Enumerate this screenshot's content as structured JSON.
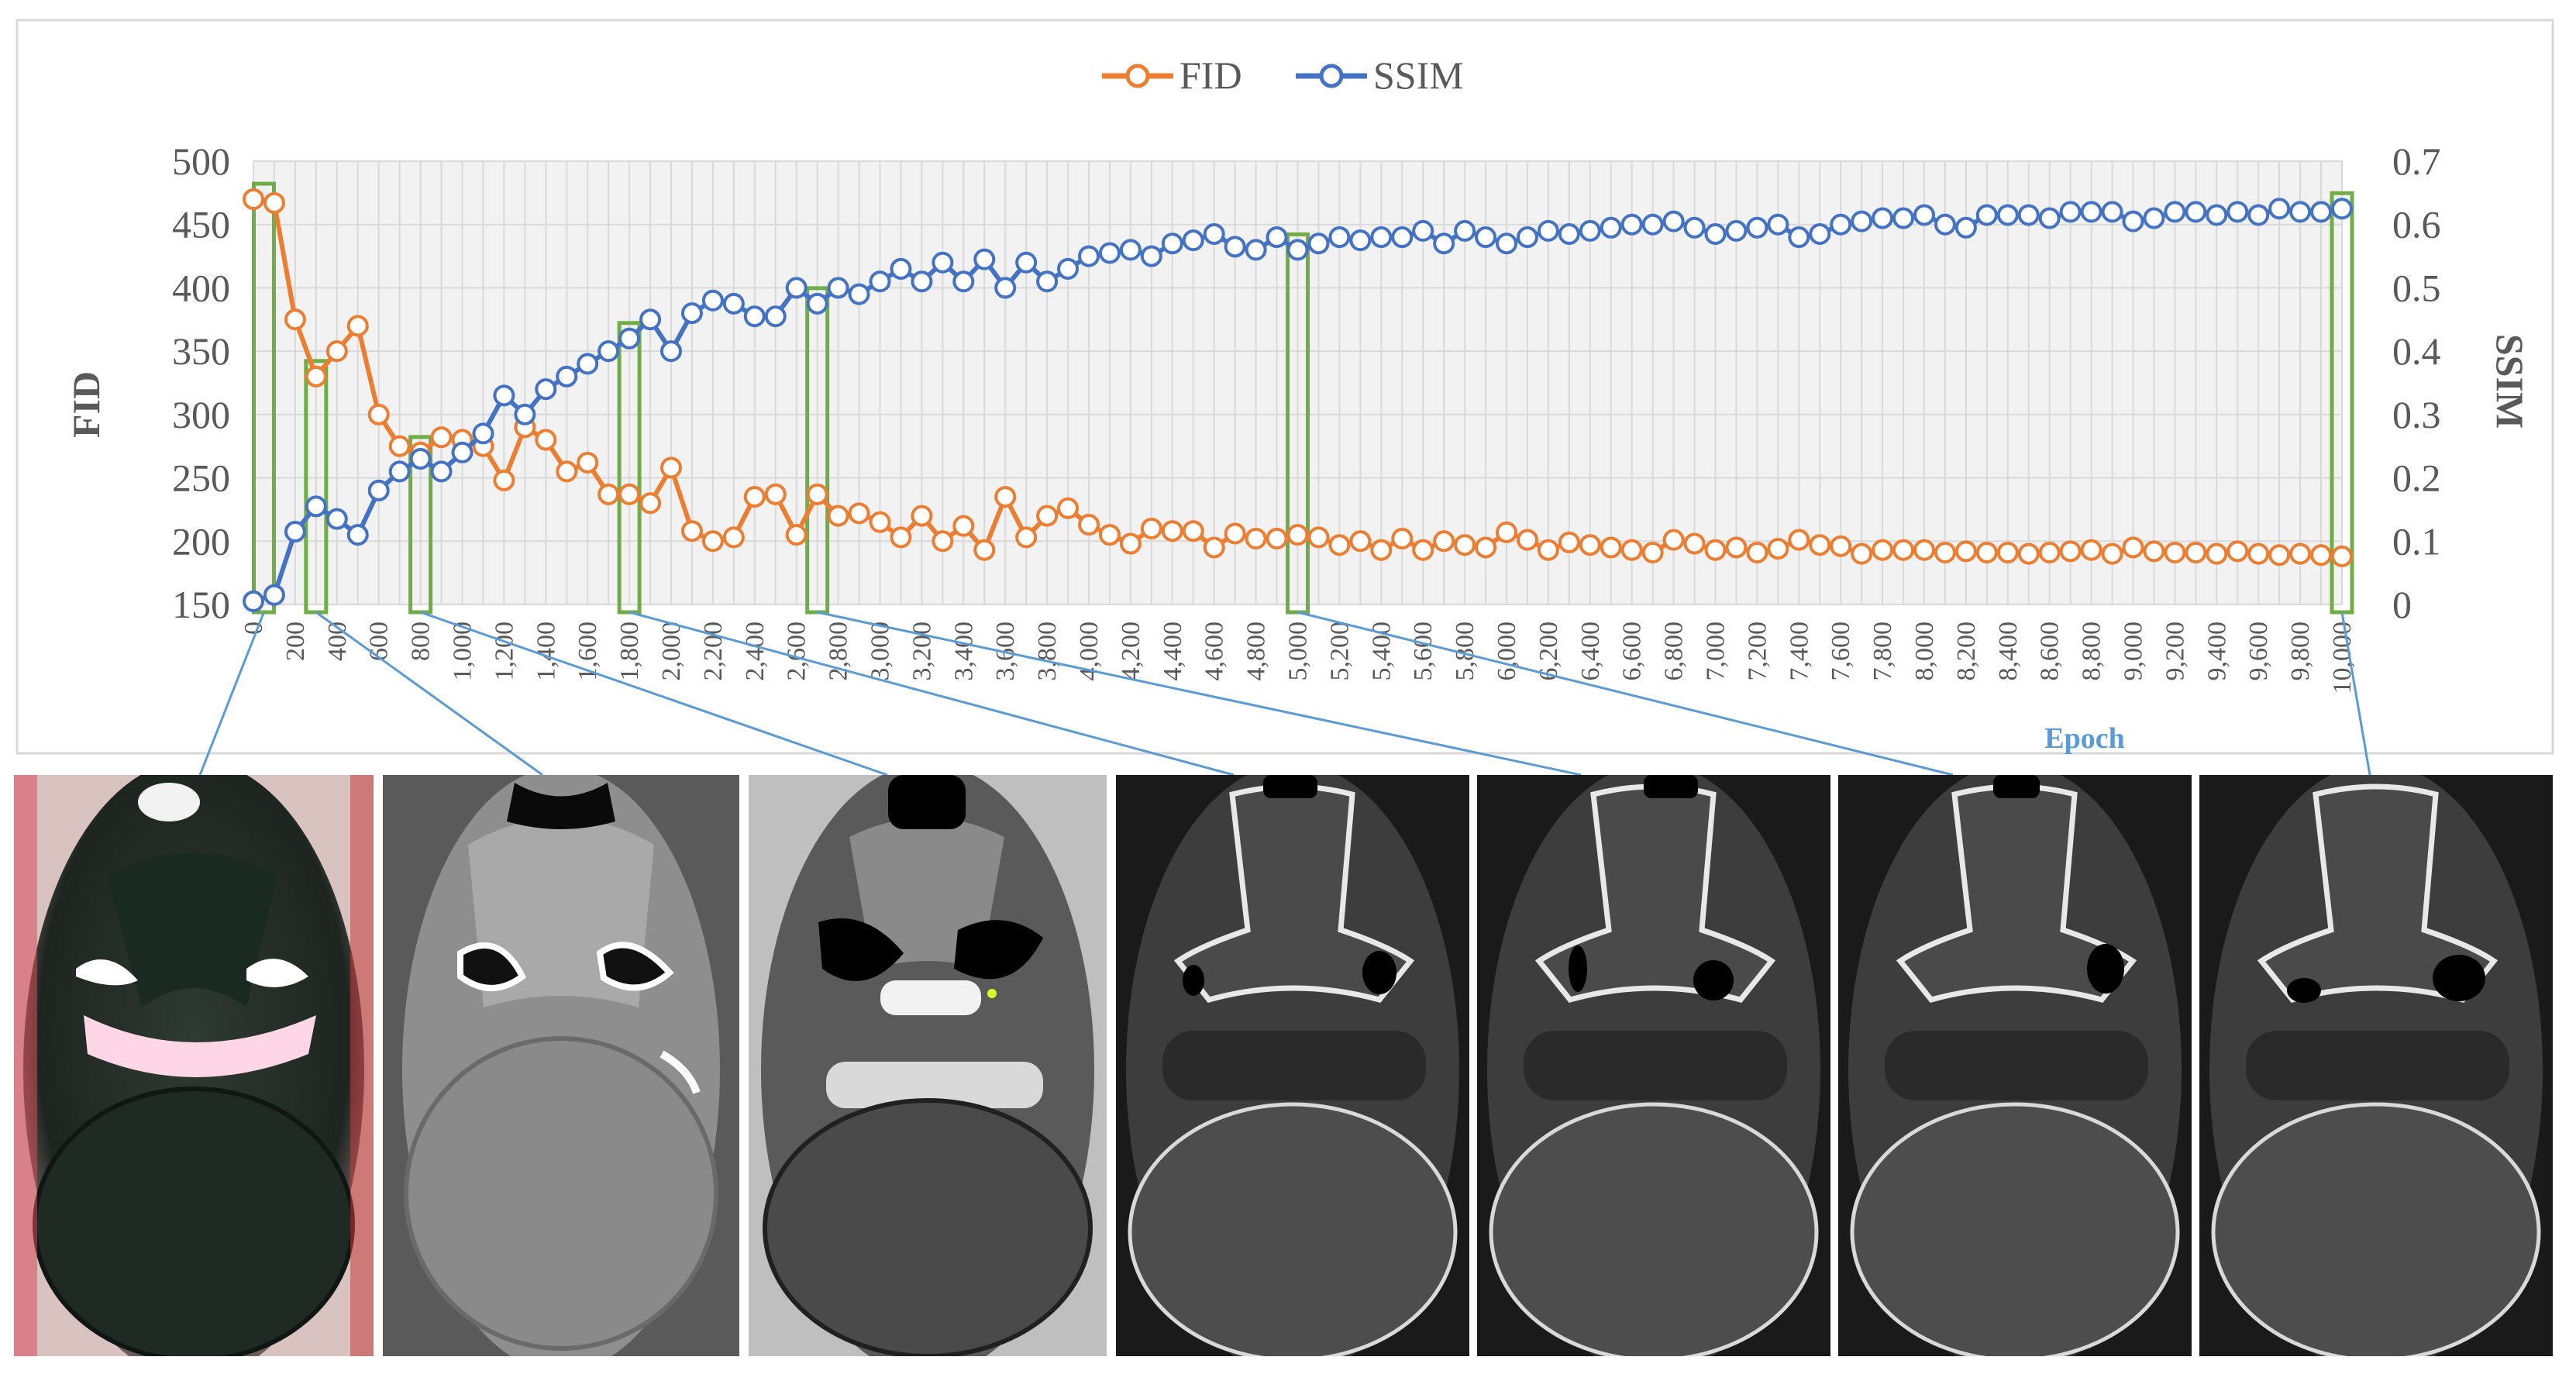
{
  "chart_data": {
    "type": "line",
    "xlabel": "Epoch",
    "y1label": "FID",
    "y2label": "SSIM",
    "y1lim": [
      150,
      500
    ],
    "y2lim": [
      0,
      0.7
    ],
    "y1ticks": [
      "150",
      "200",
      "250",
      "300",
      "350",
      "400",
      "450",
      "500"
    ],
    "y2ticks": [
      "0",
      "0.1",
      "0.2",
      "0.3",
      "0.4",
      "0.5",
      "0.6",
      "0.7"
    ],
    "xticks": [
      "0",
      "200",
      "400",
      "600",
      "800",
      "1,000",
      "1,200",
      "1,400",
      "1,600",
      "1,800",
      "2,000",
      "2,200",
      "2,400",
      "2,600",
      "2,800",
      "3,000",
      "3,200",
      "3,400",
      "3,600",
      "3,800",
      "4,000",
      "4,200",
      "4,400",
      "4,600",
      "4,800",
      "5,000",
      "5,200",
      "5,400",
      "5,600",
      "5,800",
      "6,000",
      "6,200",
      "6,400",
      "6,600",
      "6,800",
      "7,000",
      "7,200",
      "7,400",
      "7,600",
      "7,800",
      "8,000",
      "8,200",
      "8,400",
      "8,600",
      "8,800",
      "9,000",
      "9,200",
      "9,400",
      "9,600",
      "9,800",
      "10,000"
    ],
    "x": [
      0,
      100,
      200,
      300,
      400,
      500,
      600,
      700,
      800,
      900,
      1000,
      1100,
      1200,
      1300,
      1400,
      1500,
      1600,
      1700,
      1800,
      1900,
      2000,
      2100,
      2200,
      2300,
      2400,
      2500,
      2600,
      2700,
      2800,
      2900,
      3000,
      3100,
      3200,
      3300,
      3400,
      3500,
      3600,
      3700,
      3800,
      3900,
      4000,
      4100,
      4200,
      4300,
      4400,
      4500,
      4600,
      4700,
      4800,
      4900,
      5000,
      5100,
      5200,
      5300,
      5400,
      5500,
      5600,
      5700,
      5800,
      5900,
      6000,
      6100,
      6200,
      6300,
      6400,
      6500,
      6600,
      6700,
      6800,
      6900,
      7000,
      7100,
      7200,
      7300,
      7400,
      7500,
      7600,
      7700,
      7800,
      7900,
      8000,
      8100,
      8200,
      8300,
      8400,
      8500,
      8600,
      8700,
      8800,
      8900,
      9000,
      9100,
      9200,
      9300,
      9400,
      9500,
      9600,
      9700,
      9800,
      9900,
      10000
    ],
    "series": [
      {
        "name": "FID",
        "color": "#ED7D31",
        "axis": "left",
        "values": [
          470,
          467,
          375,
          330,
          350,
          370,
          300,
          275,
          270,
          282,
          280,
          275,
          248,
          290,
          280,
          255,
          262,
          237,
          237,
          230,
          258,
          208,
          200,
          203,
          235,
          237,
          205,
          237,
          220,
          222,
          215,
          203,
          220,
          200,
          212,
          193,
          235,
          203,
          220,
          226,
          213,
          205,
          198,
          210,
          208,
          208,
          195,
          206,
          202,
          202,
          205,
          203,
          197,
          200,
          193,
          202,
          193,
          200,
          197,
          195,
          207,
          201,
          193,
          199,
          197,
          195,
          193,
          191,
          201,
          198,
          193,
          195,
          191,
          194,
          201,
          197,
          196,
          190,
          193,
          193,
          193,
          191,
          192,
          191,
          191,
          190,
          191,
          192,
          193,
          190,
          195,
          192,
          191,
          191,
          190,
          192,
          190,
          189,
          190,
          189,
          188
        ]
      },
      {
        "name": "SSIM",
        "color": "#4472C4",
        "axis": "right",
        "values": [
          0.005,
          0.015,
          0.115,
          0.155,
          0.135,
          0.11,
          0.18,
          0.21,
          0.23,
          0.21,
          0.24,
          0.27,
          0.33,
          0.3,
          0.34,
          0.36,
          0.38,
          0.4,
          0.42,
          0.45,
          0.4,
          0.46,
          0.48,
          0.475,
          0.455,
          0.455,
          0.5,
          0.475,
          0.5,
          0.49,
          0.51,
          0.53,
          0.51,
          0.54,
          0.51,
          0.545,
          0.5,
          0.54,
          0.51,
          0.53,
          0.55,
          0.555,
          0.56,
          0.55,
          0.57,
          0.575,
          0.585,
          0.565,
          0.56,
          0.58,
          0.56,
          0.57,
          0.58,
          0.575,
          0.58,
          0.58,
          0.59,
          0.57,
          0.59,
          0.58,
          0.57,
          0.58,
          0.59,
          0.585,
          0.59,
          0.595,
          0.6,
          0.6,
          0.605,
          0.595,
          0.585,
          0.59,
          0.595,
          0.6,
          0.58,
          0.585,
          0.6,
          0.605,
          0.61,
          0.61,
          0.615,
          0.6,
          0.595,
          0.615,
          0.615,
          0.615,
          0.61,
          0.62,
          0.62,
          0.62,
          0.605,
          0.61,
          0.62,
          0.62,
          0.615,
          0.62,
          0.615,
          0.625,
          0.62,
          0.62,
          0.625
        ]
      }
    ],
    "highlighted_epochs": [
      50,
      300,
      800,
      1800,
      2700,
      5000,
      10000
    ],
    "grid": true,
    "legend_position": "top-center"
  },
  "legend": {
    "fid": "FID",
    "ssim": "SSIM",
    "fid_color": "#ED7D31",
    "ssim_color": "#4472C4"
  },
  "panels": [
    {
      "epoch": 50,
      "palette": "noisy-color"
    },
    {
      "epoch": 300,
      "palette": "smooth-gray"
    },
    {
      "epoch": 800,
      "palette": "coarse-texture"
    },
    {
      "epoch": 1800,
      "palette": "trabecular"
    },
    {
      "epoch": 2700,
      "palette": "trabecular"
    },
    {
      "epoch": 5000,
      "palette": "trabecular"
    },
    {
      "epoch": 10000,
      "palette": "trabecular"
    }
  ],
  "colors": {
    "highlight_box": "#70AD47",
    "connector": "#5B9BD5",
    "xlabel": "#5B9BD5",
    "grid": "#D9D9D9",
    "plot_bg": "#F2F2F2"
  }
}
